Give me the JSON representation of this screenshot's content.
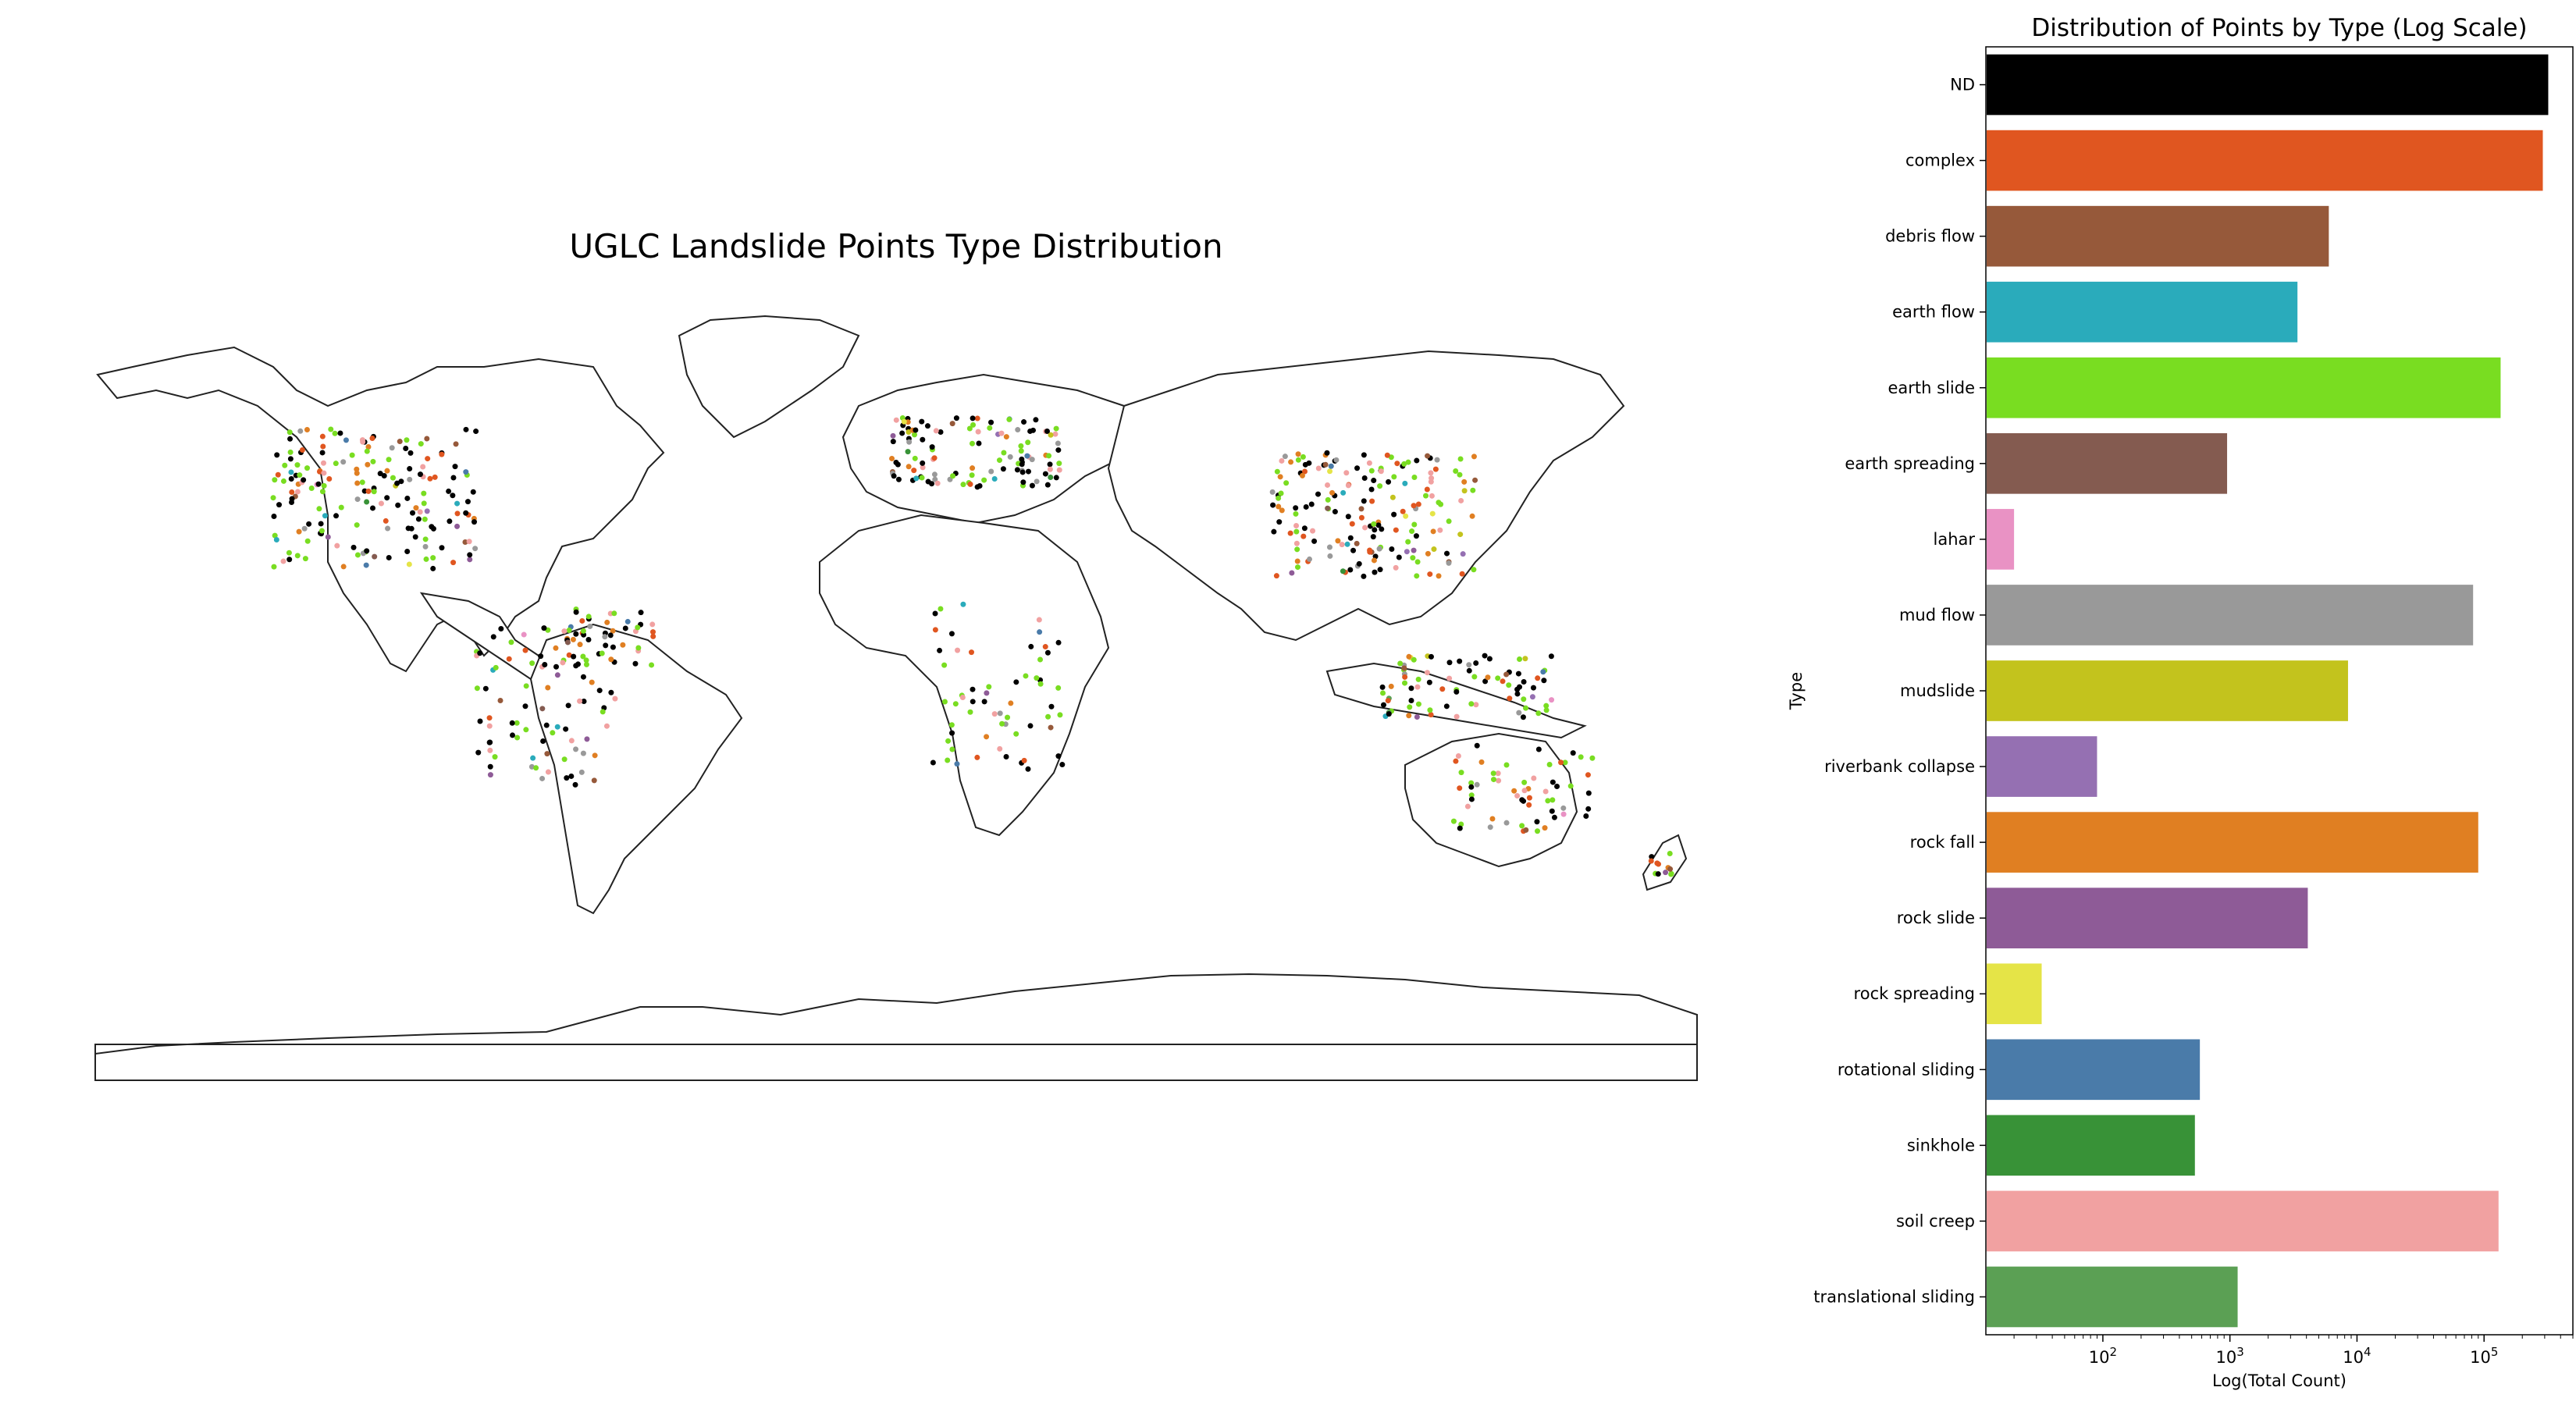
{
  "map": {
    "title": "UGLC Landslide Points Type Distribution"
  },
  "chart_data": {
    "type": "bar",
    "orientation": "horizontal",
    "title": "Distribution of Points by Type (Log Scale)",
    "xlabel": "Log(Total Count)",
    "ylabel": "Type",
    "xscale": "log",
    "xlim": [
      12,
      500000
    ],
    "xticks": [
      {
        "value": 100,
        "base": "10",
        "exp": "2"
      },
      {
        "value": 1000,
        "base": "10",
        "exp": "3"
      },
      {
        "value": 10000,
        "base": "10",
        "exp": "4"
      },
      {
        "value": 100000,
        "base": "10",
        "exp": "5"
      }
    ],
    "categories": [
      "ND",
      "complex",
      "debris flow",
      "earth flow",
      "earth slide",
      "earth spreading",
      "lahar",
      "mud flow",
      "mudslide",
      "riverbank collapse",
      "rock fall",
      "rock slide",
      "rock spreading",
      "rotational sliding",
      "sinkhole",
      "soil creep",
      "translational sliding"
    ],
    "values": [
      320000,
      290000,
      6000,
      3400,
      135000,
      950,
      20,
      82000,
      8500,
      90,
      90000,
      4100,
      33,
      580,
      530,
      130000,
      1150
    ],
    "colors": [
      "#000000",
      "#e05620",
      "#96593a",
      "#2aabbb",
      "#79dd21",
      "#845b50",
      "#e992c4",
      "#999999",
      "#c3c31d",
      "#9570b2",
      "#e07f22",
      "#8e5b97",
      "#e5e447",
      "#4a7ba9",
      "#389237",
      "#f1a1a1",
      "#5ba054"
    ],
    "grid": false,
    "legend": "none"
  }
}
